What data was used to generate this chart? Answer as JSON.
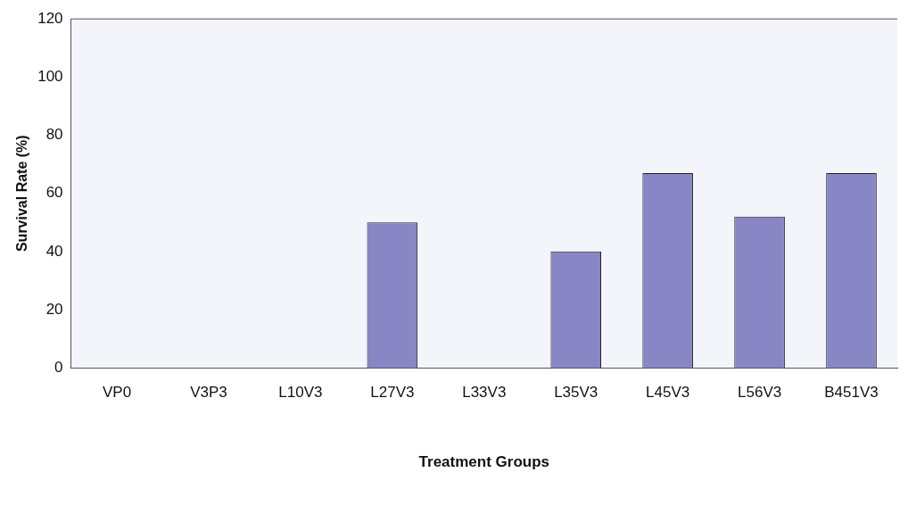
{
  "chart_data": {
    "type": "bar",
    "xlabel": "Treatment Groups",
    "ylabel": "Survival Rate (%)",
    "categories": [
      "VP0",
      "V3P3",
      "L10V3",
      "L27V3",
      "L33V3",
      "L35V3",
      "L45V3",
      "L56V3",
      "B451V3"
    ],
    "values": [
      0,
      0,
      0,
      50,
      0,
      40,
      67,
      52,
      67
    ],
    "color": "#8886c4",
    "ylim": [
      0,
      120
    ],
    "yticks": [
      0,
      20,
      40,
      60,
      80,
      100,
      120
    ],
    "grid": false,
    "legend": false
  }
}
